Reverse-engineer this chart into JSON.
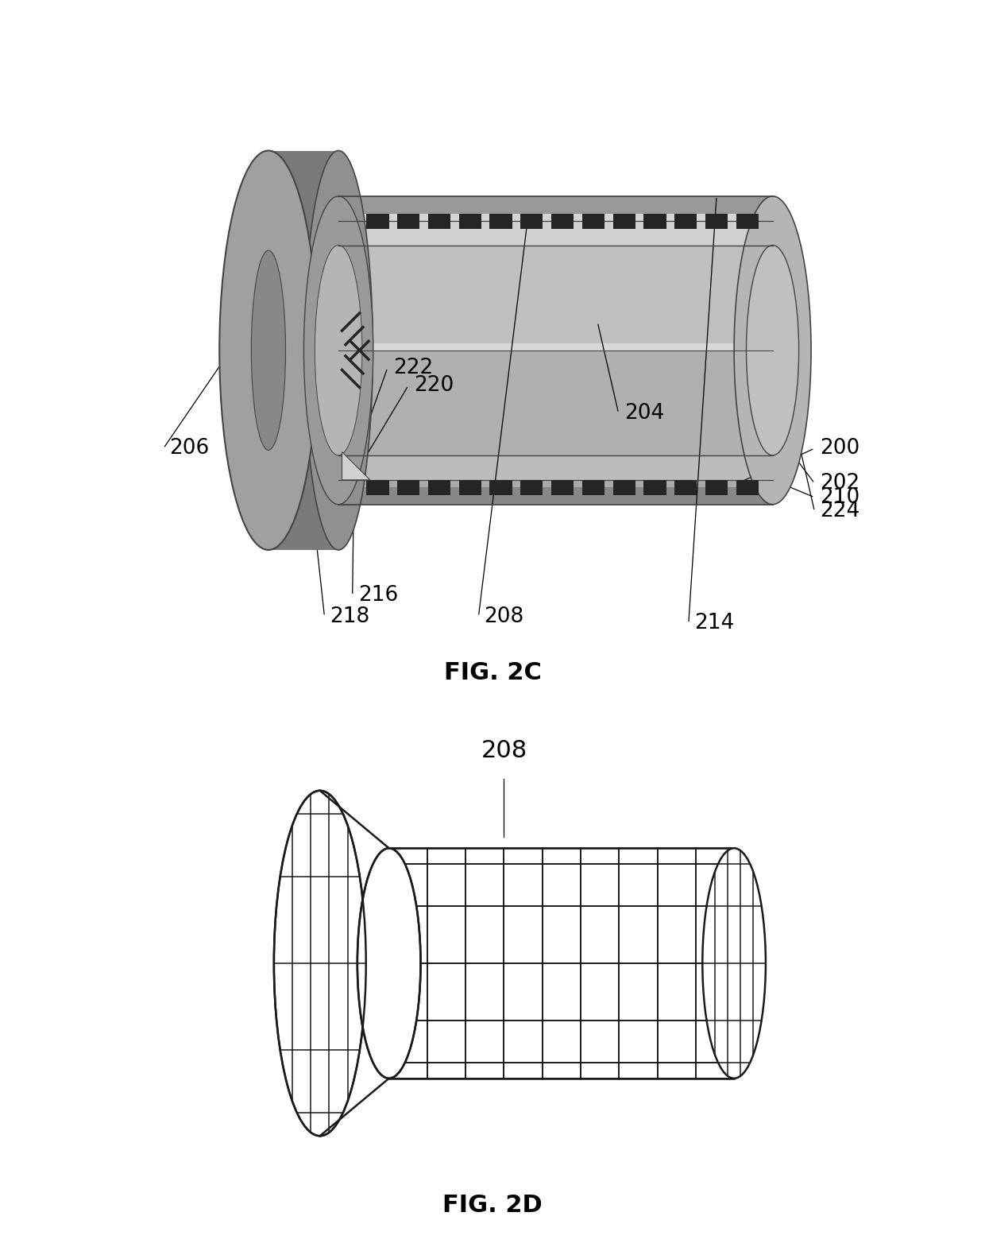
{
  "fig_title_top": "FIG. 2C",
  "fig_title_bottom": "FIG. 2D",
  "bg_color": "#ffffff",
  "label_color": "#000000",
  "label_fontsize": 19,
  "figtitle_fontsize": 22,
  "c_outer_dark": "#888888",
  "c_outer_mid": "#a0a0a0",
  "c_outer_light": "#b8b8b8",
  "c_outer_lighter": "#cccccc",
  "c_inner_dark": "#909090",
  "c_inner_mid": "#b0b0b0",
  "c_inner_light": "#c8c8c8",
  "c_inner_lighter": "#d8d8d8",
  "c_face_light": "#d0d0d0",
  "c_face_lighter": "#e0e0e0",
  "c_flange_dark": "#7a7a7a",
  "c_flange_mid": "#a8a8a8",
  "c_edge": "#555555",
  "c_dash": "#222222",
  "c_white": "#ffffff",
  "c_mesh_line": "#1a1a1a",
  "c_mesh_fill": "#f8f8f8"
}
